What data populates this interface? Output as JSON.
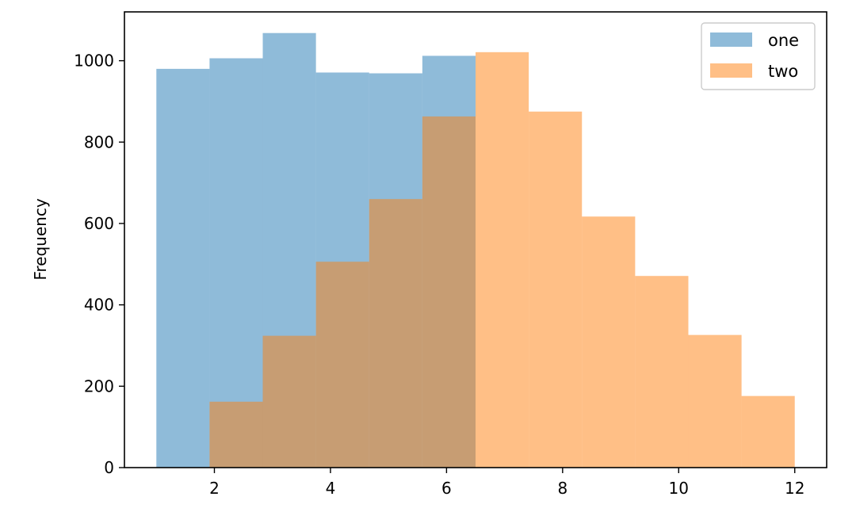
{
  "chart_data": {
    "type": "bar",
    "subtype": "histogram-overlay",
    "title": "",
    "xlabel": "",
    "ylabel": "Frequency",
    "xlim": [
      0.45,
      12.55
    ],
    "ylim": [
      0,
      1120
    ],
    "bin_edges": [
      1,
      1.9167,
      2.8333,
      3.75,
      4.6667,
      5.5833,
      6.5,
      7.4167,
      8.3333,
      9.25,
      10.1667,
      11.0833,
      12
    ],
    "xticks": [
      2,
      4,
      6,
      8,
      10,
      12
    ],
    "yticks": [
      0,
      200,
      400,
      600,
      800,
      1000
    ],
    "grid": false,
    "legend": "top-right",
    "alpha": 0.5,
    "series": [
      {
        "name": "one",
        "color": "#1f77b4",
        "values": [
          980,
          1006,
          1068,
          971,
          969,
          1012,
          0,
          0,
          0,
          0,
          0,
          0
        ]
      },
      {
        "name": "two",
        "color": "#ff7f0e",
        "values": [
          0,
          162,
          324,
          506,
          660,
          863,
          1021,
          875,
          617,
          471,
          326,
          176
        ]
      }
    ]
  }
}
